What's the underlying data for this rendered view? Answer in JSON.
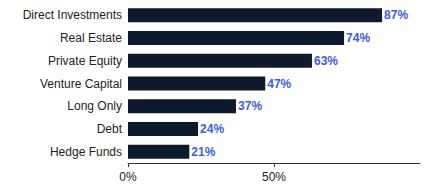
{
  "chart_data": {
    "type": "bar",
    "orientation": "horizontal",
    "categories": [
      "Direct Investments",
      "Real Estate",
      "Private Equity",
      "Venture Capital",
      "Long Only",
      "Debt",
      "Hedge Funds"
    ],
    "values": [
      87,
      74,
      63,
      47,
      37,
      24,
      21
    ],
    "value_labels": [
      "87%",
      "74%",
      "63%",
      "47%",
      "37%",
      "24%",
      "21%"
    ],
    "color": "#0c1a2c",
    "xlim": [
      0,
      100
    ],
    "xticks": [
      {
        "value": 0,
        "label": "0%"
      },
      {
        "value": 50,
        "label": "50%"
      }
    ],
    "grid": false,
    "data_labels": true
  }
}
